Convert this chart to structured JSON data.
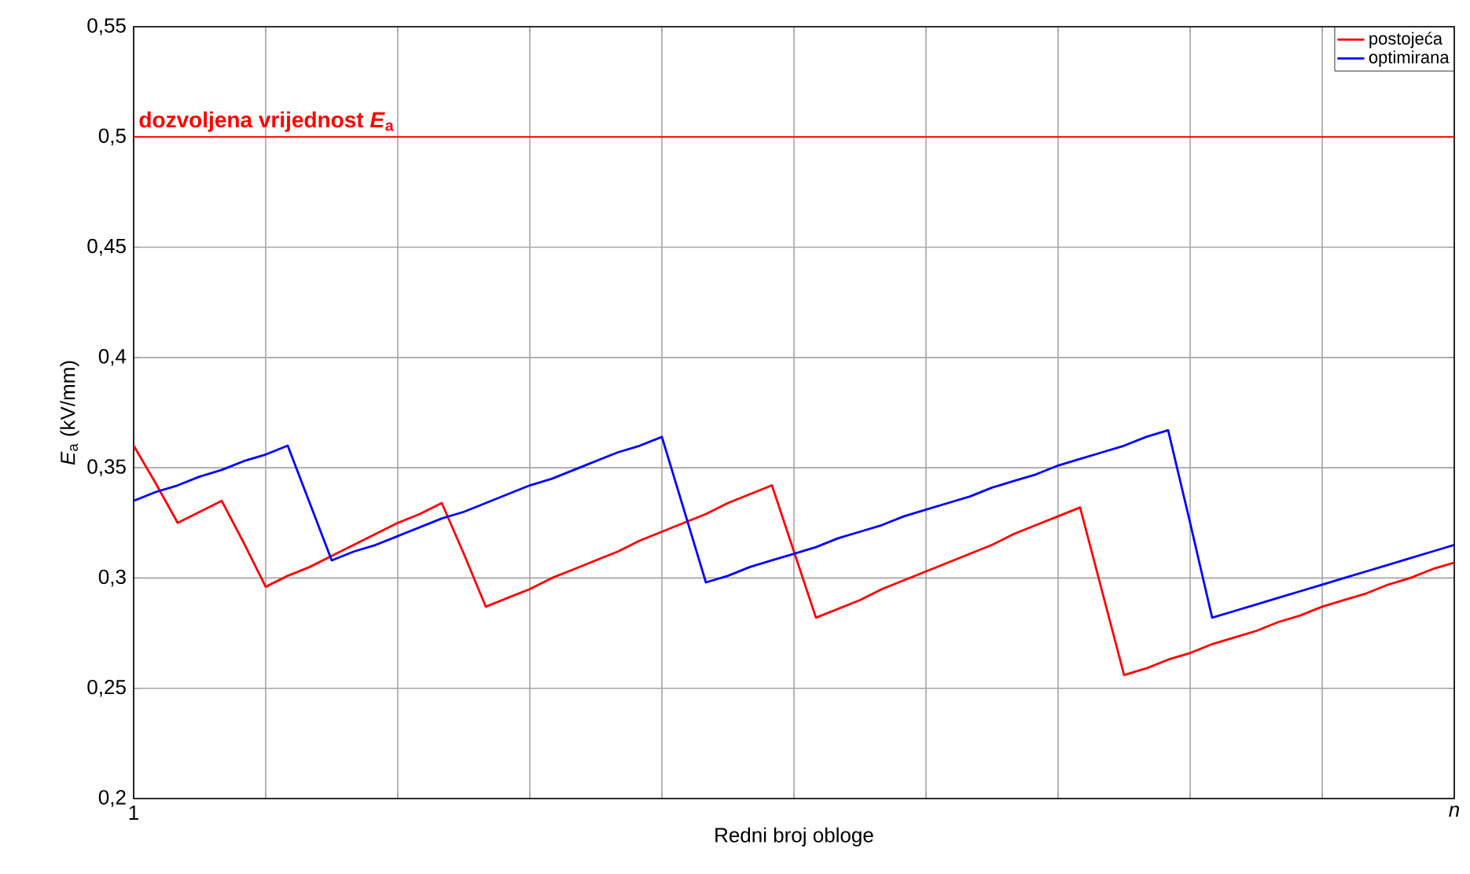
{
  "chart_data": {
    "type": "line",
    "xlabel": "Redni broj obloge",
    "ylabel": "*E*$_{a}$ (kV/mm)",
    "categories": [
      "1",
      null,
      null,
      null,
      null,
      null,
      null,
      null,
      null,
      null,
      null,
      null,
      null,
      null,
      null,
      null,
      null,
      null,
      null,
      null,
      null,
      null,
      null,
      null,
      null,
      null,
      null,
      null,
      null,
      null,
      null,
      null,
      null,
      null,
      null,
      null,
      null,
      null,
      null,
      null,
      null,
      null,
      null,
      null,
      null,
      null,
      null,
      null,
      null,
      null,
      null,
      null,
      null,
      null,
      null,
      null,
      null,
      null,
      null,
      null,
      "*n*"
    ],
    "ylim": [
      0.2,
      0.55
    ],
    "yticks": [
      {
        "value": 0.2,
        "label": "0,2"
      },
      {
        "value": 0.25,
        "label": "0,25"
      },
      {
        "value": 0.3,
        "label": "0,3"
      },
      {
        "value": 0.35,
        "label": "0,35"
      },
      {
        "value": 0.4,
        "label": "0,4"
      },
      {
        "value": 0.45,
        "label": "0,45"
      },
      {
        "value": 0.5,
        "label": "0,5"
      },
      {
        "value": 0.55,
        "label": "0,55"
      }
    ],
    "grid": true,
    "legend": "top right",
    "ref_lines": [
      {
        "axis": "y",
        "value": 0.5,
        "label": "dozvoljena vrijednost *E*$_{a}$",
        "color": "#ff0000"
      }
    ],
    "series": [
      {
        "name": "postojeća",
        "color": "#ff0000",
        "values": [
          0.36,
          0.343,
          0.325,
          0.33,
          0.335,
          0.316,
          0.296,
          0.301,
          0.305,
          0.31,
          0.315,
          0.32,
          0.325,
          0.329,
          0.334,
          0.311,
          0.287,
          0.291,
          0.295,
          0.3,
          0.304,
          0.308,
          0.312,
          0.317,
          0.321,
          0.325,
          0.329,
          0.334,
          0.338,
          0.342,
          0.312,
          0.282,
          0.286,
          0.29,
          0.295,
          0.299,
          0.303,
          0.307,
          0.311,
          0.315,
          0.32,
          0.324,
          0.328,
          0.332,
          0.294,
          0.256,
          0.259,
          0.263,
          0.266,
          0.27,
          0.273,
          0.276,
          0.28,
          0.283,
          0.287,
          0.29,
          0.293,
          0.297,
          0.3,
          0.304,
          0.307
        ]
      },
      {
        "name": "optimirana",
        "color": "#0000ff",
        "values": [
          0.335,
          0.339,
          0.342,
          0.346,
          0.349,
          0.353,
          0.356,
          0.36,
          0.334,
          0.308,
          0.312,
          0.315,
          0.319,
          0.323,
          0.327,
          0.33,
          0.334,
          0.338,
          0.342,
          0.345,
          0.349,
          0.353,
          0.357,
          0.36,
          0.364,
          0.331,
          0.298,
          0.301,
          0.305,
          0.308,
          0.311,
          0.314,
          0.318,
          0.321,
          0.324,
          0.328,
          0.331,
          0.334,
          0.337,
          0.341,
          0.344,
          0.347,
          0.351,
          0.354,
          0.357,
          0.36,
          0.364,
          0.367,
          0.325,
          0.282,
          0.285,
          0.288,
          0.291,
          0.294,
          0.297,
          0.3,
          0.303,
          0.306,
          0.309,
          0.312,
          0.315
        ]
      }
    ]
  }
}
